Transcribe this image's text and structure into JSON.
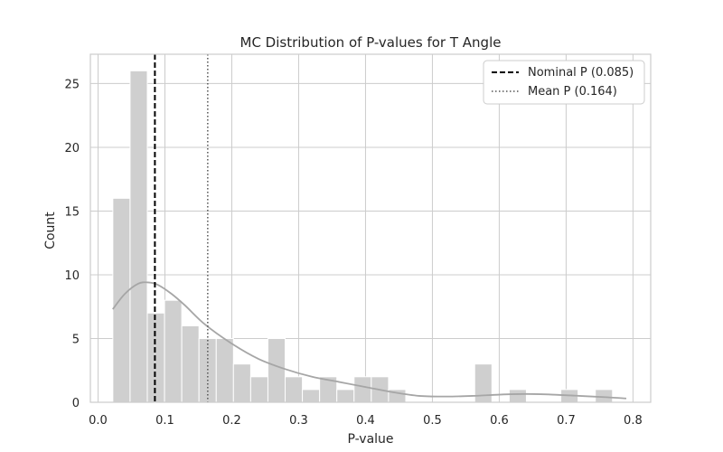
{
  "chart_data": {
    "type": "bar",
    "title": "MC Distribution of P-values for T Angle",
    "xlabel": "P-value",
    "ylabel": "Count",
    "xlim": [
      -0.0115,
      0.8265
    ],
    "ylim": [
      0,
      27.3
    ],
    "xticks": [
      0.0,
      0.1,
      0.2,
      0.3,
      0.4,
      0.5,
      0.6,
      0.7,
      0.8
    ],
    "xtick_labels": [
      "0.0",
      "0.1",
      "0.2",
      "0.3",
      "0.4",
      "0.5",
      "0.6",
      "0.7",
      "0.8"
    ],
    "yticks": [
      0,
      5,
      10,
      15,
      20,
      25
    ],
    "ytick_labels": [
      "0",
      "5",
      "10",
      "15",
      "20",
      "25"
    ],
    "grid": true,
    "histogram": {
      "bin_start": 0.0221,
      "bin_width": 0.02577,
      "counts": [
        16,
        26,
        7,
        8,
        6,
        5,
        5,
        3,
        2,
        5,
        2,
        1,
        2,
        1,
        2,
        2,
        1,
        0,
        0,
        0,
        0,
        3,
        0,
        1,
        0,
        0,
        1,
        0,
        1
      ],
      "color": "#cfcfcf"
    },
    "kde": {
      "color": "#a6a6a6",
      "x": [
        0.022,
        0.04,
        0.06,
        0.075,
        0.09,
        0.11,
        0.13,
        0.16,
        0.2,
        0.24,
        0.28,
        0.32,
        0.36,
        0.4,
        0.44,
        0.48,
        0.52,
        0.56,
        0.6,
        0.64,
        0.68,
        0.72,
        0.76,
        0.79
      ],
      "y": [
        7.3,
        8.5,
        9.3,
        9.4,
        9.2,
        8.5,
        7.6,
        6.1,
        4.6,
        3.4,
        2.6,
        2.0,
        1.6,
        1.2,
        0.8,
        0.5,
        0.45,
        0.5,
        0.6,
        0.65,
        0.6,
        0.5,
        0.4,
        0.3
      ]
    },
    "vlines": [
      {
        "name": "Nominal P (0.085)",
        "x": 0.085,
        "style": "dashed",
        "color": "#000000"
      },
      {
        "name": "Mean P (0.164)",
        "x": 0.164,
        "style": "dotted",
        "color": "#555555"
      }
    ],
    "legend": {
      "placement": "top-right",
      "entries": [
        "Nominal P (0.085)",
        "Mean P (0.164)"
      ]
    }
  }
}
